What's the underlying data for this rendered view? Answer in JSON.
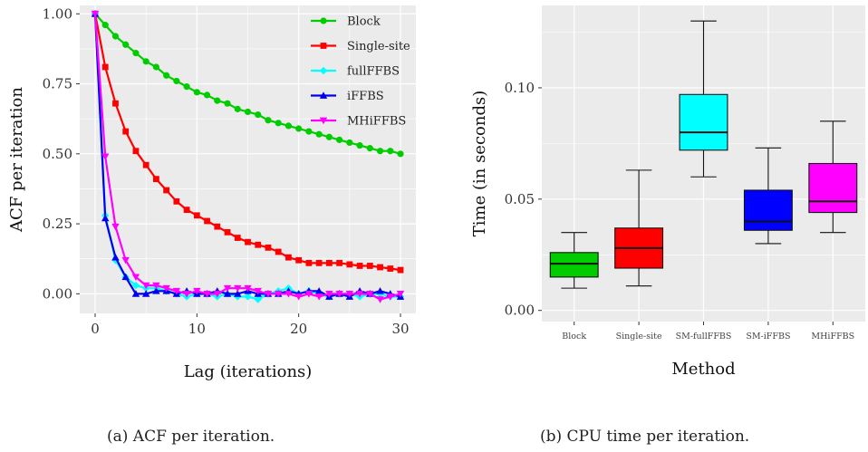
{
  "chart_data": [
    {
      "type": "line",
      "panel": "(a)",
      "caption": "(a) ACF per iteration.",
      "xlabel": "Lag (iterations)",
      "ylabel": "ACF per iteration",
      "xlim": [
        0,
        30
      ],
      "ylim": [
        -0.07,
        1.03
      ],
      "x_ticks": [
        "0",
        "10",
        "20",
        "30"
      ],
      "y_ticks": [
        "0.00",
        "0.25",
        "0.50",
        "0.75",
        "1.00"
      ],
      "grid": true,
      "legend_position": "top-right",
      "x": [
        0,
        1,
        2,
        3,
        4,
        5,
        6,
        7,
        8,
        9,
        10,
        11,
        12,
        13,
        14,
        15,
        16,
        17,
        18,
        19,
        20,
        21,
        22,
        23,
        24,
        25,
        26,
        27,
        28,
        29,
        30
      ],
      "series": [
        {
          "name": "Block",
          "color": "#00cc00",
          "marker": "circle",
          "values": [
            1.0,
            0.96,
            0.92,
            0.89,
            0.86,
            0.83,
            0.81,
            0.78,
            0.76,
            0.74,
            0.72,
            0.71,
            0.69,
            0.68,
            0.66,
            0.65,
            0.64,
            0.62,
            0.61,
            0.6,
            0.59,
            0.58,
            0.57,
            0.56,
            0.55,
            0.54,
            0.53,
            0.52,
            0.51,
            0.51,
            0.5
          ]
        },
        {
          "name": "Single-site",
          "color": "#ff0000",
          "marker": "square",
          "values": [
            1.0,
            0.81,
            0.68,
            0.58,
            0.51,
            0.46,
            0.41,
            0.37,
            0.33,
            0.3,
            0.28,
            0.26,
            0.24,
            0.22,
            0.2,
            0.185,
            0.175,
            0.165,
            0.15,
            0.13,
            0.12,
            0.11,
            0.11,
            0.11,
            0.11,
            0.105,
            0.1,
            0.1,
            0.095,
            0.09,
            0.085
          ]
        },
        {
          "name": "fullFFBS",
          "color": "#00ffff",
          "marker": "diamond",
          "values": [
            1.0,
            0.28,
            0.12,
            0.06,
            0.03,
            0.02,
            0.02,
            0.01,
            0.0,
            -0.01,
            0.0,
            0.0,
            -0.01,
            0.0,
            -0.01,
            -0.01,
            -0.02,
            0.0,
            0.01,
            0.02,
            0.0,
            0.01,
            0.0,
            -0.01,
            0.0,
            0.0,
            -0.01,
            0.0,
            0.0,
            -0.01,
            -0.01
          ]
        },
        {
          "name": "iFFBS",
          "color": "#0000ee",
          "marker": "triangle-up",
          "values": [
            1.0,
            0.27,
            0.13,
            0.06,
            0.0,
            0.0,
            0.01,
            0.01,
            0.0,
            0.01,
            0.0,
            0.0,
            0.01,
            0.0,
            0.0,
            0.01,
            0.0,
            0.0,
            0.0,
            0.01,
            0.0,
            0.01,
            0.01,
            -0.01,
            0.0,
            -0.01,
            0.01,
            0.0,
            0.01,
            0.0,
            -0.01
          ]
        },
        {
          "name": "MHiFFBS",
          "color": "#ff00ff",
          "marker": "triangle-down",
          "values": [
            1.0,
            0.49,
            0.24,
            0.12,
            0.06,
            0.03,
            0.03,
            0.02,
            0.01,
            0.0,
            0.01,
            0.0,
            0.0,
            0.02,
            0.02,
            0.02,
            0.01,
            0.0,
            0.0,
            0.0,
            -0.01,
            0.0,
            -0.01,
            0.0,
            0.0,
            0.0,
            0.0,
            0.0,
            -0.02,
            -0.01,
            0.0
          ]
        }
      ]
    },
    {
      "type": "boxplot",
      "panel": "(b)",
      "caption": "(b) CPU time per iteration.",
      "xlabel": "Method",
      "ylabel": "Time (in seconds)",
      "ylim": [
        -0.005,
        0.137
      ],
      "y_ticks": [
        "0.00",
        "0.05",
        "0.10"
      ],
      "grid": true,
      "categories": [
        "Block",
        "Single-site",
        "SM-fullFFBS",
        "SM-iFFBS",
        "MHiFFBS"
      ],
      "boxes": [
        {
          "label": "Block",
          "color": "#00cc00",
          "min": 0.01,
          "q1": 0.015,
          "median": 0.021,
          "q3": 0.026,
          "max": 0.035
        },
        {
          "label": "Single-site",
          "color": "#ff0000",
          "min": 0.011,
          "q1": 0.019,
          "median": 0.028,
          "q3": 0.037,
          "max": 0.063
        },
        {
          "label": "SM-fullFFBS",
          "color": "#00ffff",
          "min": 0.06,
          "q1": 0.072,
          "median": 0.08,
          "q3": 0.097,
          "max": 0.13
        },
        {
          "label": "SM-iFFBS",
          "color": "#0000ff",
          "min": 0.03,
          "q1": 0.036,
          "median": 0.04,
          "q3": 0.054,
          "max": 0.073
        },
        {
          "label": "MHiFFBS",
          "color": "#ff00ff",
          "min": 0.035,
          "q1": 0.044,
          "median": 0.049,
          "q3": 0.066,
          "max": 0.085
        }
      ]
    }
  ]
}
